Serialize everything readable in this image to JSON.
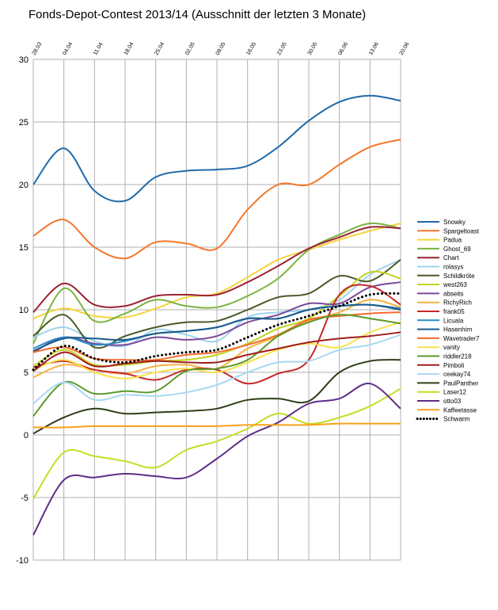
{
  "chart_data": {
    "type": "line",
    "title": "Fonds-Depot-Contest 2013/14 (Ausschnitt der letzten 3 Monate)",
    "xlabel": "",
    "ylabel": "",
    "categories": [
      "28.03",
      "04.04",
      "11.04",
      "18.04",
      "25.04",
      "02.05",
      "09.05",
      "16.05",
      "23.05",
      "30.05",
      "06.06",
      "13.06",
      "20.06"
    ],
    "ylim": [
      -10,
      30
    ],
    "yticks": [
      -10,
      -5,
      0,
      5,
      10,
      15,
      20,
      25,
      30
    ],
    "grid": true,
    "legend_position": "right",
    "series": [
      {
        "name": "Snowky",
        "color": "#1f6aa8",
        "dashed": false,
        "values": [
          20.0,
          22.9,
          19.5,
          18.7,
          20.6,
          21.1,
          21.2,
          21.5,
          23.0,
          25.1,
          26.6,
          27.1,
          26.7
        ]
      },
      {
        "name": "Spargeltoast",
        "color": "#f4772b",
        "dashed": false,
        "values": [
          15.9,
          17.2,
          15.0,
          14.1,
          15.4,
          15.3,
          14.9,
          18.0,
          20.0,
          20.0,
          21.6,
          23.0,
          23.6
        ]
      },
      {
        "name": "Padua",
        "color": "#f5d43c",
        "dashed": false,
        "values": [
          9.3,
          10.1,
          9.5,
          9.4,
          10.1,
          11.0,
          11.3,
          12.6,
          14.0,
          14.8,
          15.6,
          16.3,
          16.9
        ]
      },
      {
        "name": "Ghost_69",
        "color": "#7cb342",
        "dashed": false,
        "values": [
          7.3,
          11.7,
          9.1,
          9.7,
          10.8,
          10.3,
          10.2,
          11.1,
          12.5,
          14.8,
          16.0,
          16.9,
          16.5
        ]
      },
      {
        "name": "Chart",
        "color": "#9c2232",
        "dashed": false,
        "values": [
          9.8,
          12.1,
          10.4,
          10.3,
          11.1,
          11.2,
          11.2,
          12.2,
          13.5,
          14.9,
          15.8,
          16.6,
          16.5
        ]
      },
      {
        "name": "rolasys",
        "color": "#9fd3ee",
        "dashed": false,
        "values": [
          7.8,
          8.6,
          7.5,
          7.1,
          8.4,
          8.0,
          7.5,
          9.4,
          9.8,
          10.0,
          10.8,
          12.8,
          14.0
        ]
      },
      {
        "name": "Schildkröte",
        "color": "#4a5a28",
        "dashed": false,
        "values": [
          7.9,
          9.6,
          7.0,
          7.9,
          8.6,
          9.0,
          9.1,
          10.0,
          11.0,
          11.3,
          12.7,
          12.3,
          14.0
        ]
      },
      {
        "name": "west263",
        "color": "#c3d21e",
        "dashed": false,
        "values": [
          5.5,
          6.8,
          5.6,
          5.6,
          5.9,
          6.0,
          6.4,
          7.3,
          8.5,
          9.3,
          11.1,
          13.0,
          12.5
        ]
      },
      {
        "name": "abseits",
        "color": "#7a4a9a",
        "dashed": false,
        "values": [
          6.6,
          7.8,
          7.3,
          7.2,
          7.8,
          7.6,
          7.9,
          9.0,
          9.6,
          10.5,
          10.5,
          11.8,
          12.2
        ]
      },
      {
        "name": "RichyRich",
        "color": "#f7b242",
        "dashed": false,
        "values": [
          4.6,
          5.6,
          5.2,
          4.9,
          5.5,
          5.6,
          5.3,
          6.9,
          7.9,
          9.1,
          9.8,
          10.8,
          10.2
        ]
      },
      {
        "name": "frank05",
        "color": "#c62828",
        "dashed": false,
        "values": [
          5.4,
          5.9,
          5.2,
          4.9,
          4.4,
          5.2,
          5.2,
          4.1,
          4.9,
          6.0,
          11.2,
          11.9,
          10.4
        ]
      },
      {
        "name": "Licuala",
        "color": "#2a8cc7",
        "dashed": false,
        "values": [
          6.9,
          7.8,
          7.2,
          7.5,
          8.1,
          8.3,
          8.6,
          9.3,
          9.3,
          10.0,
          10.3,
          10.4,
          10.1
        ]
      },
      {
        "name": "Hasenhirn",
        "color": "#1a5a8a",
        "dashed": false,
        "values": [
          6.7,
          7.7,
          7.7,
          7.6,
          8.1,
          8.3,
          8.6,
          9.3,
          9.3,
          10.0,
          10.3,
          10.4,
          10.0
        ]
      },
      {
        "name": "Wavetrader7",
        "color": "#f56a2c",
        "dashed": false,
        "values": [
          6.6,
          7.0,
          6.1,
          6.0,
          6.0,
          6.4,
          6.6,
          7.2,
          8.0,
          9.2,
          9.5,
          9.7,
          9.8
        ]
      },
      {
        "name": "vanity",
        "color": "#f9e24a",
        "dashed": false,
        "values": [
          5.2,
          6.0,
          5.0,
          4.5,
          5.0,
          5.3,
          5.0,
          5.8,
          6.8,
          7.3,
          7.0,
          8.2,
          9.0
        ]
      },
      {
        "name": "riddler218",
        "color": "#5a9a2c",
        "dashed": false,
        "values": [
          1.5,
          4.2,
          3.3,
          3.5,
          3.5,
          5.1,
          5.3,
          6.0,
          7.9,
          9.0,
          9.6,
          9.3,
          8.9
        ]
      },
      {
        "name": "Pimboli",
        "color": "#a01e1e",
        "dashed": false,
        "values": [
          5.1,
          6.6,
          5.5,
          5.7,
          5.9,
          5.8,
          5.8,
          6.4,
          6.9,
          7.4,
          7.7,
          7.9,
          8.2
        ]
      },
      {
        "name": "ceekay74",
        "color": "#a8d8f0",
        "dashed": false,
        "values": [
          2.5,
          4.2,
          2.8,
          3.2,
          3.1,
          3.4,
          4.0,
          5.0,
          5.8,
          5.9,
          6.8,
          7.2,
          8.0
        ]
      },
      {
        "name": "PaulPanther",
        "color": "#2e3e1a",
        "dashed": false,
        "values": [
          0.1,
          1.4,
          2.1,
          1.7,
          1.8,
          1.9,
          2.1,
          2.8,
          2.9,
          2.7,
          5.0,
          5.9,
          6.0
        ]
      },
      {
        "name": "Laser12",
        "color": "#c6dc26",
        "dashed": false,
        "values": [
          -5.1,
          -1.4,
          -1.7,
          -2.1,
          -2.6,
          -1.2,
          -0.5,
          0.5,
          1.7,
          0.9,
          1.4,
          2.3,
          3.7
        ]
      },
      {
        "name": "otto03",
        "color": "#5e2d86",
        "dashed": false,
        "values": [
          -8.0,
          -3.6,
          -3.4,
          -3.1,
          -3.3,
          -3.4,
          -1.9,
          -0.1,
          1.0,
          2.5,
          2.9,
          4.1,
          2.1
        ]
      },
      {
        "name": "Kaffeetasse",
        "color": "#f9a11b",
        "dashed": false,
        "values": [
          0.6,
          0.6,
          0.7,
          0.7,
          0.7,
          0.7,
          0.7,
          0.8,
          0.8,
          0.8,
          0.9,
          0.9,
          0.9
        ]
      },
      {
        "name": "Schwarm",
        "color": "#000000",
        "dashed": true,
        "values": [
          5.2,
          7.1,
          6.1,
          5.8,
          6.3,
          6.6,
          6.8,
          7.8,
          8.8,
          9.5,
          10.3,
          11.2,
          11.3
        ]
      }
    ]
  }
}
